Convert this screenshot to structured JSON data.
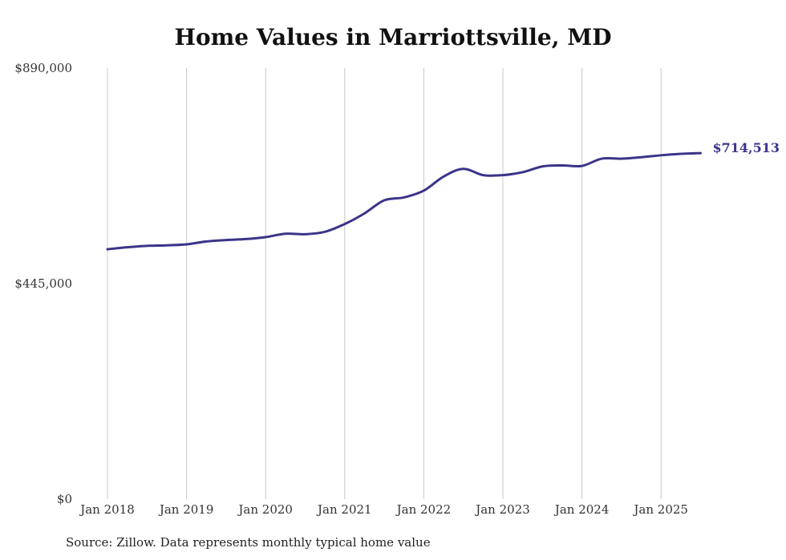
{
  "chart_data": {
    "type": "line",
    "title": "Home Values in Marriottsville, MD",
    "source": "Source: Zillow. Data represents monthly typical home value",
    "xlabel": "",
    "ylabel": "",
    "ylim": [
      0,
      890000
    ],
    "y_ticks": [
      {
        "value": 0,
        "label": "$0"
      },
      {
        "value": 445000,
        "label": "$445,000"
      },
      {
        "value": 890000,
        "label": "$890,000"
      }
    ],
    "x_ticks": [
      {
        "value": 2018.0,
        "label": "Jan 2018"
      },
      {
        "value": 2019.0,
        "label": "Jan 2019"
      },
      {
        "value": 2020.0,
        "label": "Jan 2020"
      },
      {
        "value": 2021.0,
        "label": "Jan 2021"
      },
      {
        "value": 2022.0,
        "label": "Jan 2022"
      },
      {
        "value": 2023.0,
        "label": "Jan 2023"
      },
      {
        "value": 2024.0,
        "label": "Jan 2024"
      },
      {
        "value": 2025.0,
        "label": "Jan 2025"
      }
    ],
    "grid": "vertical",
    "series": [
      {
        "color": "#3b3489",
        "end_label": "$714,513",
        "points": [
          {
            "x": 2018.0,
            "y": 516000
          },
          {
            "x": 2018.25,
            "y": 520000
          },
          {
            "x": 2018.5,
            "y": 523000
          },
          {
            "x": 2018.75,
            "y": 524000
          },
          {
            "x": 2019.0,
            "y": 526000
          },
          {
            "x": 2019.25,
            "y": 532000
          },
          {
            "x": 2019.5,
            "y": 535000
          },
          {
            "x": 2019.75,
            "y": 537000
          },
          {
            "x": 2020.0,
            "y": 541000
          },
          {
            "x": 2020.25,
            "y": 548000
          },
          {
            "x": 2020.5,
            "y": 547000
          },
          {
            "x": 2020.75,
            "y": 552000
          },
          {
            "x": 2021.0,
            "y": 568000
          },
          {
            "x": 2021.25,
            "y": 590000
          },
          {
            "x": 2021.5,
            "y": 617000
          },
          {
            "x": 2021.75,
            "y": 623000
          },
          {
            "x": 2022.0,
            "y": 637000
          },
          {
            "x": 2022.25,
            "y": 666000
          },
          {
            "x": 2022.5,
            "y": 682000
          },
          {
            "x": 2022.75,
            "y": 669000
          },
          {
            "x": 2023.0,
            "y": 669000
          },
          {
            "x": 2023.25,
            "y": 675000
          },
          {
            "x": 2023.5,
            "y": 687000
          },
          {
            "x": 2023.75,
            "y": 689000
          },
          {
            "x": 2024.0,
            "y": 688000
          },
          {
            "x": 2024.25,
            "y": 703000
          },
          {
            "x": 2024.5,
            "y": 703000
          },
          {
            "x": 2024.75,
            "y": 706000
          },
          {
            "x": 2025.0,
            "y": 710000
          },
          {
            "x": 2025.25,
            "y": 713000
          },
          {
            "x": 2025.5,
            "y": 714513
          }
        ]
      }
    ]
  }
}
